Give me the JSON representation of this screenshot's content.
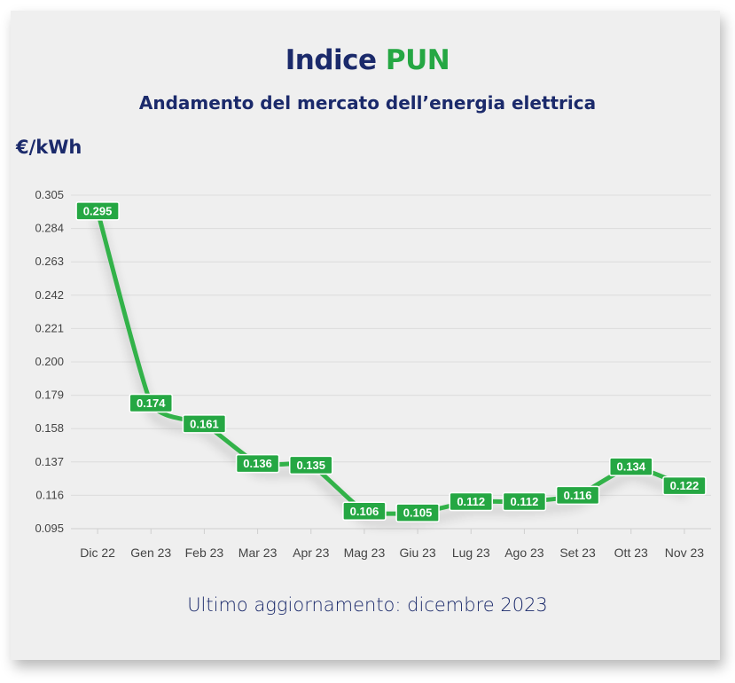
{
  "header": {
    "title_main": "Indice",
    "title_accent": "PUN",
    "subtitle": "Andamento del mercato dell’energia elettrica",
    "unit": "€/kWh"
  },
  "footer": {
    "text": "Ultimo aggiornamento: dicembre 2023"
  },
  "colors": {
    "line": "#33b24a",
    "label_bg": "#25a743",
    "navy": "#1b2a6b",
    "background": "#efefef",
    "grid": "#dcdcdc"
  },
  "chart_data": {
    "type": "line",
    "title": "Indice PUN",
    "subtitle": "Andamento del mercato dell’energia elettrica",
    "ylabel": "€/kWh",
    "xlabel": "",
    "categories": [
      "Dic 22",
      "Gen 23",
      "Feb 23",
      "Mar 23",
      "Apr 23",
      "Mag 23",
      "Giu 23",
      "Lug 23",
      "Ago 23",
      "Set 23",
      "Ott 23",
      "Nov 23"
    ],
    "series": [
      {
        "values": [
          0.295,
          0.174,
          0.161,
          0.136,
          0.135,
          0.106,
          0.105,
          0.112,
          0.112,
          0.116,
          0.134,
          0.122
        ],
        "labels": [
          "0.295",
          "0.174",
          "0.161",
          "0.136",
          "0.135",
          "0.106",
          "0.105",
          "0.112",
          "0.112",
          "0.116",
          "0.134",
          "0.122"
        ]
      }
    ],
    "yticks": [
      "0.305",
      "0.284",
      "0.263",
      "0.242",
      "0.221",
      "0.200",
      "0.179",
      "0.158",
      "0.137",
      "0.116",
      "0.095"
    ],
    "ylim": [
      0.095,
      0.305
    ],
    "grid": true,
    "legend": "none"
  }
}
